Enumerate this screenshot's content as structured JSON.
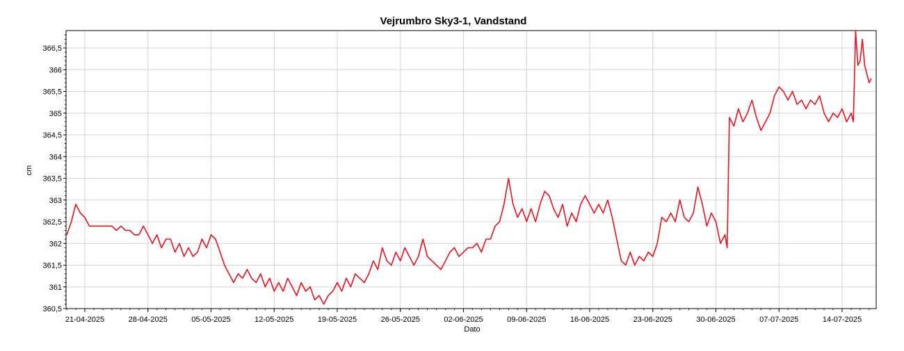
{
  "chart_data": {
    "type": "line",
    "title": "Vejrumbro Sky3-1, Vandstand",
    "xlabel": "Dato",
    "ylabel": "cm",
    "x_ticks": [
      "21-04-2025",
      "28-04-2025",
      "05-05-2025",
      "12-05-2025",
      "19-05-2025",
      "26-05-2025",
      "02-06-2025",
      "09-06-2025",
      "16-06-2025",
      "23-06-2025",
      "30-06-2025",
      "07-07-2025",
      "14-07-2025"
    ],
    "y_ticks": [
      "360,5",
      "361",
      "361,5",
      "362",
      "362,5",
      "363",
      "363,5",
      "364",
      "364,5",
      "365",
      "365,5",
      "366",
      "366,5"
    ],
    "x_range": [
      "2025-04-18",
      "2025-07-19"
    ],
    "ylim": [
      360.5,
      366.9
    ],
    "grid": true,
    "series": [
      {
        "color": "#e8101c",
        "points": [
          [
            "2025-04-19T00:00",
            362.2
          ],
          [
            "2025-04-19T12:00",
            362.5
          ],
          [
            "2025-04-20T00:00",
            362.9
          ],
          [
            "2025-04-20T12:00",
            362.7
          ],
          [
            "2025-04-21T00:00",
            362.6
          ],
          [
            "2025-04-21T12:00",
            362.4
          ],
          [
            "2025-04-22T00:00",
            362.4
          ],
          [
            "2025-04-23T00:00",
            362.4
          ],
          [
            "2025-04-24T00:00",
            362.4
          ],
          [
            "2025-04-24T12:00",
            362.3
          ],
          [
            "2025-04-25T00:00",
            362.4
          ],
          [
            "2025-04-25T12:00",
            362.3
          ],
          [
            "2025-04-26T00:00",
            362.3
          ],
          [
            "2025-04-26T12:00",
            362.2
          ],
          [
            "2025-04-27T00:00",
            362.2
          ],
          [
            "2025-04-27T12:00",
            362.4
          ],
          [
            "2025-04-28T00:00",
            362.2
          ],
          [
            "2025-04-28T12:00",
            362.0
          ],
          [
            "2025-04-29T00:00",
            362.2
          ],
          [
            "2025-04-29T12:00",
            361.9
          ],
          [
            "2025-04-30T00:00",
            362.1
          ],
          [
            "2025-04-30T12:00",
            362.1
          ],
          [
            "2025-05-01T00:00",
            361.8
          ],
          [
            "2025-05-01T12:00",
            362.0
          ],
          [
            "2025-05-02T00:00",
            361.7
          ],
          [
            "2025-05-02T12:00",
            361.9
          ],
          [
            "2025-05-03T00:00",
            361.7
          ],
          [
            "2025-05-03T12:00",
            361.8
          ],
          [
            "2025-05-04T00:00",
            362.1
          ],
          [
            "2025-05-04T12:00",
            361.9
          ],
          [
            "2025-05-05T00:00",
            362.2
          ],
          [
            "2025-05-05T12:00",
            362.1
          ],
          [
            "2025-05-06T00:00",
            361.8
          ],
          [
            "2025-05-06T12:00",
            361.5
          ],
          [
            "2025-05-07T00:00",
            361.3
          ],
          [
            "2025-05-07T12:00",
            361.1
          ],
          [
            "2025-05-08T00:00",
            361.3
          ],
          [
            "2025-05-08T12:00",
            361.2
          ],
          [
            "2025-05-09T00:00",
            361.4
          ],
          [
            "2025-05-09T12:00",
            361.2
          ],
          [
            "2025-05-10T00:00",
            361.1
          ],
          [
            "2025-05-10T12:00",
            361.3
          ],
          [
            "2025-05-11T00:00",
            361.0
          ],
          [
            "2025-05-11T12:00",
            361.2
          ],
          [
            "2025-05-12T00:00",
            360.9
          ],
          [
            "2025-05-12T12:00",
            361.1
          ],
          [
            "2025-05-13T00:00",
            360.9
          ],
          [
            "2025-05-13T12:00",
            361.2
          ],
          [
            "2025-05-14T00:00",
            361.0
          ],
          [
            "2025-05-14T12:00",
            360.8
          ],
          [
            "2025-05-15T00:00",
            361.1
          ],
          [
            "2025-05-15T12:00",
            360.9
          ],
          [
            "2025-05-16T00:00",
            361.0
          ],
          [
            "2025-05-16T12:00",
            360.7
          ],
          [
            "2025-05-17T00:00",
            360.8
          ],
          [
            "2025-05-17T12:00",
            360.6
          ],
          [
            "2025-05-18T00:00",
            360.8
          ],
          [
            "2025-05-18T12:00",
            360.9
          ],
          [
            "2025-05-19T00:00",
            361.1
          ],
          [
            "2025-05-19T12:00",
            360.9
          ],
          [
            "2025-05-20T00:00",
            361.2
          ],
          [
            "2025-05-20T12:00",
            361.0
          ],
          [
            "2025-05-21T00:00",
            361.3
          ],
          [
            "2025-05-21T12:00",
            361.2
          ],
          [
            "2025-05-22T00:00",
            361.1
          ],
          [
            "2025-05-22T12:00",
            361.3
          ],
          [
            "2025-05-23T00:00",
            361.6
          ],
          [
            "2025-05-23T12:00",
            361.4
          ],
          [
            "2025-05-24T00:00",
            361.9
          ],
          [
            "2025-05-24T12:00",
            361.6
          ],
          [
            "2025-05-25T00:00",
            361.5
          ],
          [
            "2025-05-25T12:00",
            361.8
          ],
          [
            "2025-05-26T00:00",
            361.6
          ],
          [
            "2025-05-26T12:00",
            361.9
          ],
          [
            "2025-05-27T00:00",
            361.7
          ],
          [
            "2025-05-27T12:00",
            361.5
          ],
          [
            "2025-05-28T00:00",
            361.7
          ],
          [
            "2025-05-28T12:00",
            362.1
          ],
          [
            "2025-05-29T00:00",
            361.7
          ],
          [
            "2025-05-29T12:00",
            361.6
          ],
          [
            "2025-05-30T00:00",
            361.5
          ],
          [
            "2025-05-30T12:00",
            361.4
          ],
          [
            "2025-05-31T00:00",
            361.6
          ],
          [
            "2025-05-31T12:00",
            361.8
          ],
          [
            "2025-06-01T00:00",
            361.9
          ],
          [
            "2025-06-01T12:00",
            361.7
          ],
          [
            "2025-06-02T00:00",
            361.8
          ],
          [
            "2025-06-02T12:00",
            361.9
          ],
          [
            "2025-06-03T00:00",
            361.9
          ],
          [
            "2025-06-03T12:00",
            362.0
          ],
          [
            "2025-06-04T00:00",
            361.8
          ],
          [
            "2025-06-04T12:00",
            362.1
          ],
          [
            "2025-06-05T00:00",
            362.1
          ],
          [
            "2025-06-05T12:00",
            362.4
          ],
          [
            "2025-06-06T00:00",
            362.5
          ],
          [
            "2025-06-06T12:00",
            362.9
          ],
          [
            "2025-06-07T00:00",
            363.5
          ],
          [
            "2025-06-07T12:00",
            362.9
          ],
          [
            "2025-06-08T00:00",
            362.6
          ],
          [
            "2025-06-08T12:00",
            362.8
          ],
          [
            "2025-06-09T00:00",
            362.5
          ],
          [
            "2025-06-09T12:00",
            362.8
          ],
          [
            "2025-06-10T00:00",
            362.5
          ],
          [
            "2025-06-10T12:00",
            362.9
          ],
          [
            "2025-06-11T00:00",
            363.2
          ],
          [
            "2025-06-11T12:00",
            363.1
          ],
          [
            "2025-06-12T00:00",
            362.8
          ],
          [
            "2025-06-12T12:00",
            362.6
          ],
          [
            "2025-06-13T00:00",
            362.9
          ],
          [
            "2025-06-13T12:00",
            362.4
          ],
          [
            "2025-06-14T00:00",
            362.7
          ],
          [
            "2025-06-14T12:00",
            362.5
          ],
          [
            "2025-06-15T00:00",
            362.9
          ],
          [
            "2025-06-15T12:00",
            363.1
          ],
          [
            "2025-06-16T00:00",
            362.9
          ],
          [
            "2025-06-16T12:00",
            362.7
          ],
          [
            "2025-06-17T00:00",
            362.9
          ],
          [
            "2025-06-17T12:00",
            362.7
          ],
          [
            "2025-06-18T00:00",
            363.0
          ],
          [
            "2025-06-18T12:00",
            362.6
          ],
          [
            "2025-06-19T00:00",
            362.1
          ],
          [
            "2025-06-19T12:00",
            361.6
          ],
          [
            "2025-06-20T00:00",
            361.5
          ],
          [
            "2025-06-20T12:00",
            361.8
          ],
          [
            "2025-06-21T00:00",
            361.5
          ],
          [
            "2025-06-21T12:00",
            361.7
          ],
          [
            "2025-06-22T00:00",
            361.6
          ],
          [
            "2025-06-22T12:00",
            361.8
          ],
          [
            "2025-06-23T00:00",
            361.7
          ],
          [
            "2025-06-23T12:00",
            362.0
          ],
          [
            "2025-06-24T00:00",
            362.6
          ],
          [
            "2025-06-24T12:00",
            362.5
          ],
          [
            "2025-06-25T00:00",
            362.7
          ],
          [
            "2025-06-25T12:00",
            362.5
          ],
          [
            "2025-06-26T00:00",
            363.0
          ],
          [
            "2025-06-26T12:00",
            362.6
          ],
          [
            "2025-06-27T00:00",
            362.5
          ],
          [
            "2025-06-27T12:00",
            362.7
          ],
          [
            "2025-06-28T00:00",
            363.3
          ],
          [
            "2025-06-28T12:00",
            362.9
          ],
          [
            "2025-06-29T00:00",
            362.4
          ],
          [
            "2025-06-29T12:00",
            362.7
          ],
          [
            "2025-06-30T00:00",
            362.5
          ],
          [
            "2025-06-30T12:00",
            362.0
          ],
          [
            "2025-07-01T00:00",
            362.2
          ],
          [
            "2025-07-01T06:00",
            361.9
          ],
          [
            "2025-07-01T12:00",
            364.9
          ],
          [
            "2025-07-02T00:00",
            364.7
          ],
          [
            "2025-07-02T12:00",
            365.1
          ],
          [
            "2025-07-03T00:00",
            364.8
          ],
          [
            "2025-07-03T12:00",
            365.0
          ],
          [
            "2025-07-04T00:00",
            365.3
          ],
          [
            "2025-07-04T12:00",
            364.9
          ],
          [
            "2025-07-05T00:00",
            364.6
          ],
          [
            "2025-07-05T12:00",
            364.8
          ],
          [
            "2025-07-06T00:00",
            365.0
          ],
          [
            "2025-07-06T12:00",
            365.4
          ],
          [
            "2025-07-07T00:00",
            365.6
          ],
          [
            "2025-07-07T12:00",
            365.5
          ],
          [
            "2025-07-08T00:00",
            365.3
          ],
          [
            "2025-07-08T12:00",
            365.5
          ],
          [
            "2025-07-09T00:00",
            365.2
          ],
          [
            "2025-07-09T12:00",
            365.3
          ],
          [
            "2025-07-10T00:00",
            365.1
          ],
          [
            "2025-07-10T12:00",
            365.3
          ],
          [
            "2025-07-11T00:00",
            365.2
          ],
          [
            "2025-07-11T12:00",
            365.4
          ],
          [
            "2025-07-12T00:00",
            365.0
          ],
          [
            "2025-07-12T12:00",
            364.8
          ],
          [
            "2025-07-13T00:00",
            365.0
          ],
          [
            "2025-07-13T12:00",
            364.9
          ],
          [
            "2025-07-14T00:00",
            365.1
          ],
          [
            "2025-07-14T12:00",
            364.8
          ],
          [
            "2025-07-15T00:00",
            365.0
          ],
          [
            "2025-07-15T06:00",
            364.8
          ],
          [
            "2025-07-15T12:00",
            366.9
          ],
          [
            "2025-07-15T18:00",
            366.1
          ],
          [
            "2025-07-16T00:00",
            366.2
          ],
          [
            "2025-07-16T06:00",
            366.7
          ],
          [
            "2025-07-16T12:00",
            366.1
          ],
          [
            "2025-07-17T00:00",
            365.7
          ],
          [
            "2025-07-17T06:00",
            365.8
          ]
        ]
      }
    ]
  }
}
